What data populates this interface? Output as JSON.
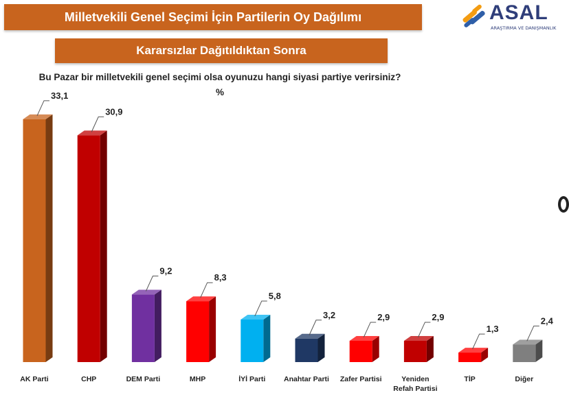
{
  "header": {
    "title": "Milletvekili Genel Seçimi İçin Partilerin Oy Dağılımı",
    "subtitle": "Kararsızlar Dağıtıldıktan Sonra",
    "question": "Bu Pazar bir milletvekili genel seçimi olsa oyunuzu hangi siyasi partiye verirsiniz?",
    "unit": "%"
  },
  "logo": {
    "word": "ASAL",
    "tagline": "ARAŞTIRMA VE DANIŞMANLIK"
  },
  "chart_data": {
    "type": "bar",
    "title": "Milletvekili Genel Seçimi İçin Partilerin Oy Dağılımı",
    "subtitle": "Kararsızlar Dağıtıldıktan Sonra",
    "ylabel": "%",
    "ylim": [
      0,
      35
    ],
    "grid": false,
    "categories": [
      [
        "AK Parti"
      ],
      [
        "CHP"
      ],
      [
        "DEM Parti"
      ],
      [
        "MHP"
      ],
      [
        "İYİ Parti"
      ],
      [
        "Anahtar Parti"
      ],
      [
        "Zafer Partisi"
      ],
      [
        "Yeniden",
        "Refah Partisi"
      ],
      [
        "TİP"
      ],
      [
        "Diğer"
      ]
    ],
    "values": [
      33.1,
      30.9,
      9.2,
      8.3,
      5.8,
      3.2,
      2.9,
      2.9,
      1.3,
      2.4
    ],
    "value_labels": [
      "33,1",
      "30,9",
      "9,2",
      "8,3",
      "5,8",
      "3,2",
      "2,9",
      "2,9",
      "1,3",
      "2,4"
    ],
    "colors": [
      "#c8641e",
      "#c00000",
      "#7030a0",
      "#ff0000",
      "#00b0f0",
      "#1f3864",
      "#ff0000",
      "#c00000",
      "#ff0000",
      "#7f7f7f"
    ]
  }
}
